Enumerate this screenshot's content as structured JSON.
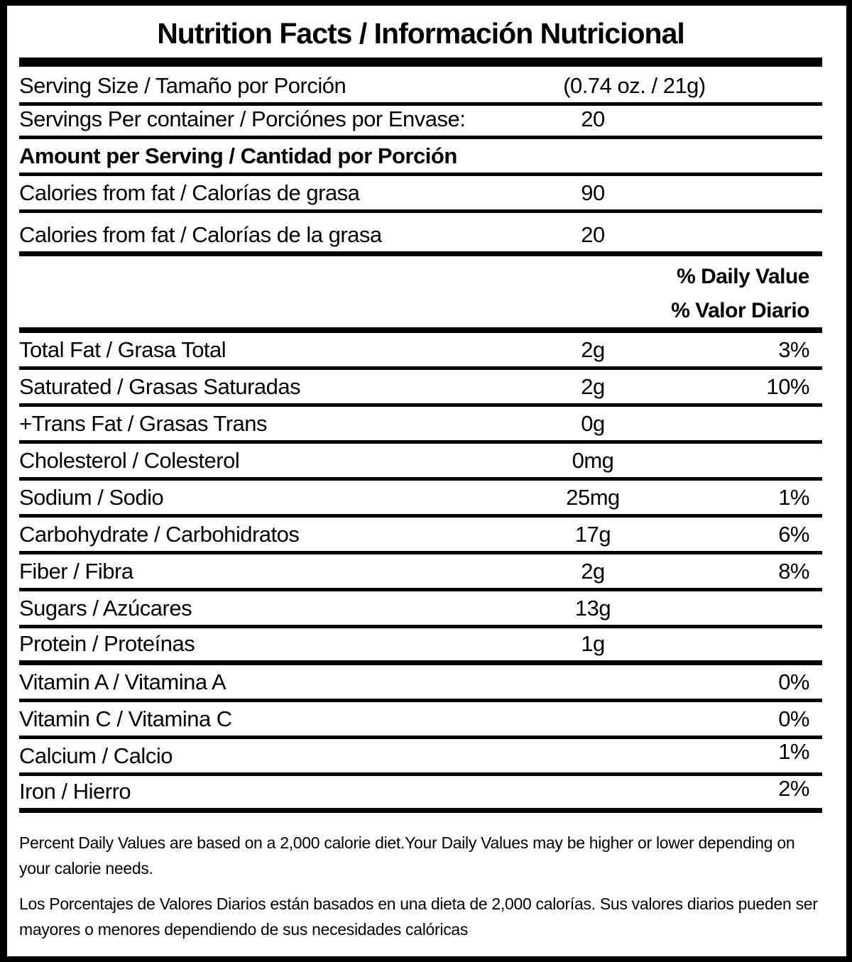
{
  "title": "Nutrition Facts / Información Nutricional",
  "serving_size": {
    "label": "Serving Size / Tamaño por Porción",
    "value": "(0.74 oz. / 21g)"
  },
  "servings_per_container": {
    "label": "Servings Per container / Porciónes por Envase:",
    "value": "20"
  },
  "amount_per_serving_header": "Amount per Serving / Cantidad por Porción",
  "calories": [
    {
      "label": "Calories from fat / Calorías de grasa",
      "value": "90"
    },
    {
      "label": "Calories from fat / Calorías de la grasa",
      "value": "20"
    }
  ],
  "dv_header": {
    "en": "% Daily Value",
    "es": "% Valor Diario"
  },
  "nutrients": [
    {
      "label": "Total Fat / Grasa Total",
      "value": "2g",
      "dv": "3%"
    },
    {
      "label": "Saturated / Grasas Saturadas",
      "value": "2g",
      "dv": "10%"
    },
    {
      "label": "+Trans Fat / Grasas Trans",
      "value": "0g"
    },
    {
      "label": "Cholesterol / Colesterol",
      "value": "0mg"
    },
    {
      "label": "Sodium / Sodio",
      "value": "25mg",
      "dv": "1%"
    },
    {
      "label": "Carbohydrate / Carbohidratos",
      "value": "17g",
      "dv": "6%"
    },
    {
      "label": "Fiber / Fibra",
      "value": "2g",
      "dv": "8%"
    },
    {
      "label": "Sugars / Azúcares",
      "value": "13g"
    },
    {
      "label": "Protein / Proteínas",
      "value": "1g"
    },
    {
      "label": "Vitamin A / Vitamina A",
      "dv": "0%"
    },
    {
      "label": "Vitamin C / Vitamina C",
      "dv": "0%"
    },
    {
      "label": "Calcium / Calcio",
      "dv": "1%"
    },
    {
      "label": "Iron / Hierro",
      "dv": "2%"
    }
  ],
  "footnotes": {
    "en": "Percent Daily Values are based on a 2,000 calorie diet.Your Daily Values may be higher or lower depending on your calorie needs.",
    "es": "Los Porcentajes de Valores Diarios están basados en una dieta de 2,000 calorías. Sus valores diarios pueden ser mayores o menores dependiendo de sus necesidades calóricas"
  },
  "colors": {
    "ink": "#000000",
    "paper": "#ffffff"
  }
}
